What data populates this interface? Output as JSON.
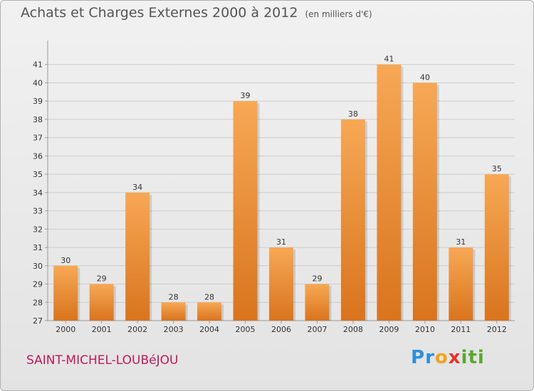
{
  "title": "Achats et Charges Externes 2000 à 2012",
  "unit_note": "(en milliers d'€)",
  "city": "SAINT-MICHEL-LOUBéJOU",
  "logo": {
    "letters": [
      {
        "char": "P",
        "color": "#2f8fd8"
      },
      {
        "char": "r",
        "color": "#2f8fd8"
      },
      {
        "char": "o",
        "color": "#f3a21b"
      },
      {
        "char": "x",
        "color": "#e6332a"
      },
      {
        "char": "i",
        "color": "#5aa831"
      },
      {
        "char": "t",
        "color": "#5aa831"
      },
      {
        "char": "i",
        "color": "#5aa831"
      }
    ]
  },
  "colors": {
    "bar_top": "#f7a855",
    "bar_bottom": "#d9741d",
    "grid": "#cccccc",
    "axis": "#999999"
  },
  "chart_data": {
    "type": "bar",
    "categories": [
      "2000",
      "2001",
      "2002",
      "2003",
      "2004",
      "2005",
      "2006",
      "2007",
      "2008",
      "2009",
      "2010",
      "2011",
      "2012"
    ],
    "values": [
      30,
      29,
      34,
      28,
      28,
      39,
      31,
      29,
      38,
      41,
      40,
      31,
      35
    ],
    "ylim": [
      27,
      42
    ],
    "yticks": [
      27,
      28,
      29,
      30,
      31,
      32,
      33,
      34,
      35,
      36,
      37,
      38,
      39,
      40,
      41
    ],
    "grid": true
  }
}
